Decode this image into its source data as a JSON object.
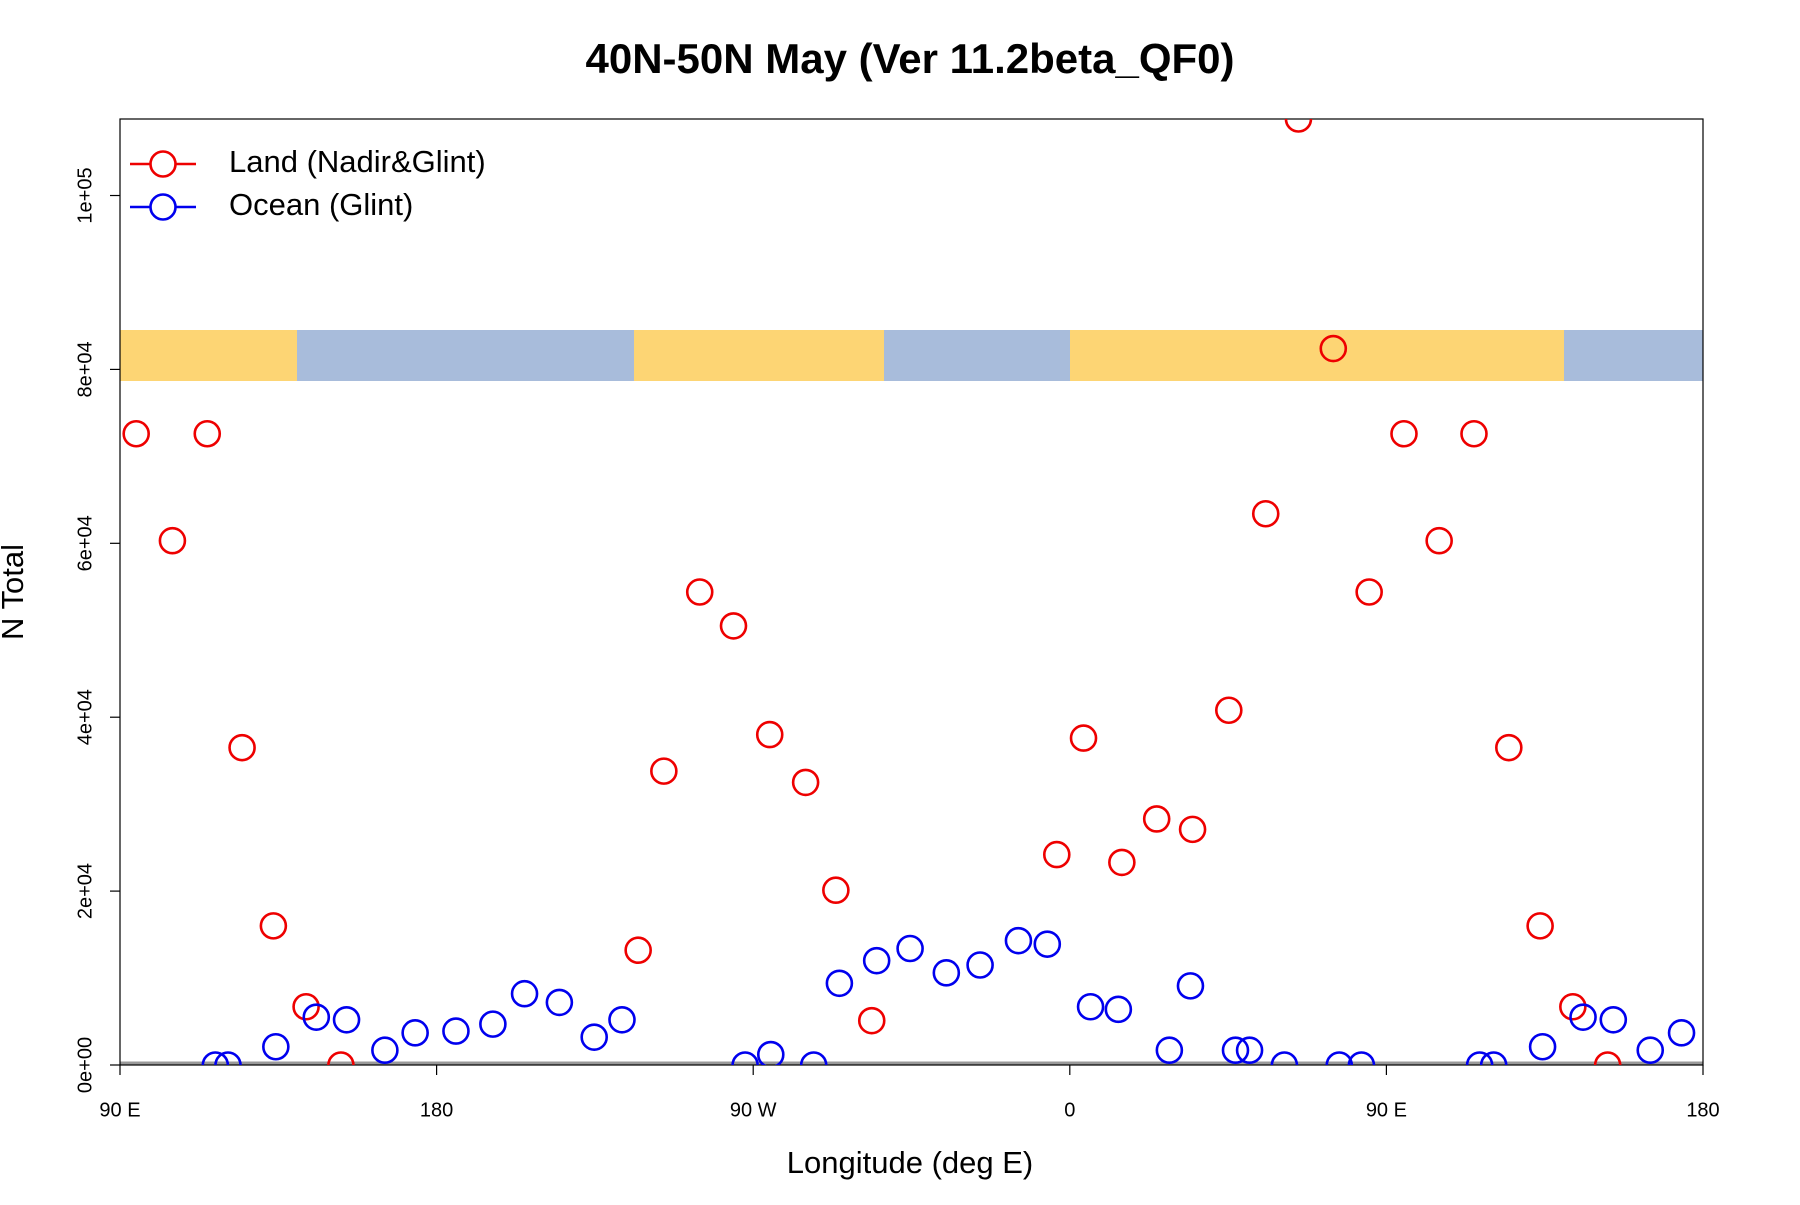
{
  "chart_data": {
    "type": "scatter",
    "title": "40N-50N May (Ver 11.2beta_QF0)",
    "x_label": "Longitude (deg E)",
    "y_label": "N Total",
    "xlim": [
      90,
      540
    ],
    "xticks": [
      {
        "value": 90,
        "label": "90 E"
      },
      180,
      {
        "value": 270,
        "label": "90 W"
      },
      {
        "value": 360,
        "label": "0"
      },
      {
        "value": 450,
        "label": "90 E"
      },
      {
        "value": 540,
        "label": "180"
      }
    ],
    "ylim": [
      0,
      108800
    ],
    "yticks": [
      {
        "value": 0,
        "label": "0e+00"
      },
      {
        "value": 20000,
        "label": "2e+04"
      },
      {
        "value": 40000,
        "label": "4e+04"
      },
      {
        "value": 60000,
        "label": "6e+04"
      },
      {
        "value": 80000,
        "label": "8e+04"
      },
      {
        "value": 100000,
        "label": "1e+05"
      }
    ],
    "legend": "topleft",
    "series": [
      {
        "name": "Land (Nadir&Glint)",
        "color": "#ee0000",
        "x": [
          94.6,
          104.9,
          114.8,
          124.7,
          133.6,
          142.9,
          152.8,
          237.3,
          244.6,
          254.8,
          264.4,
          274.7,
          284.9,
          293.5,
          303.7,
          356.3,
          363.9,
          374.8,
          384.7,
          394.9,
          405.2,
          415.7,
          425.0,
          434.9,
          445.1,
          455.0,
          465.0,
          474.9,
          484.8,
          493.7,
          503.0,
          512.9
        ],
        "values": [
          72600,
          60300,
          72600,
          36500,
          16000,
          6700,
          0,
          13200,
          33800,
          54400,
          50500,
          38000,
          32500,
          20100,
          5100,
          24200,
          37600,
          23300,
          28300,
          27100,
          40800,
          63400,
          108800,
          82400,
          54400,
          72600,
          60300,
          72600,
          36500,
          16000,
          6700,
          0
        ]
      },
      {
        "name": "Ocean (Glint)",
        "color": "#0000ee",
        "x": [
          117.1,
          120.7,
          134.3,
          145.8,
          154.4,
          165.3,
          173.9,
          185.5,
          196.0,
          205.0,
          214.9,
          224.8,
          232.7,
          267.7,
          275.0,
          287.2,
          294.5,
          305.1,
          314.6,
          324.9,
          334.5,
          345.4,
          353.6,
          365.9,
          373.8,
          388.3,
          394.3,
          407.1,
          411.1,
          421.0,
          436.6,
          442.9,
          476.5,
          480.5,
          494.4,
          505.9,
          514.5,
          525.0,
          533.9
        ],
        "values": [
          0,
          0,
          2100,
          5500,
          5200,
          1700,
          3700,
          3900,
          4700,
          8200,
          7200,
          3200,
          5200,
          0,
          1200,
          0,
          9400,
          12000,
          13400,
          10600,
          11500,
          14300,
          13900,
          6700,
          6400,
          1700,
          9100,
          1700,
          1700,
          0,
          0,
          0,
          0,
          0,
          2100,
          5500,
          5200,
          1700,
          3700
        ]
      }
    ]
  }
}
